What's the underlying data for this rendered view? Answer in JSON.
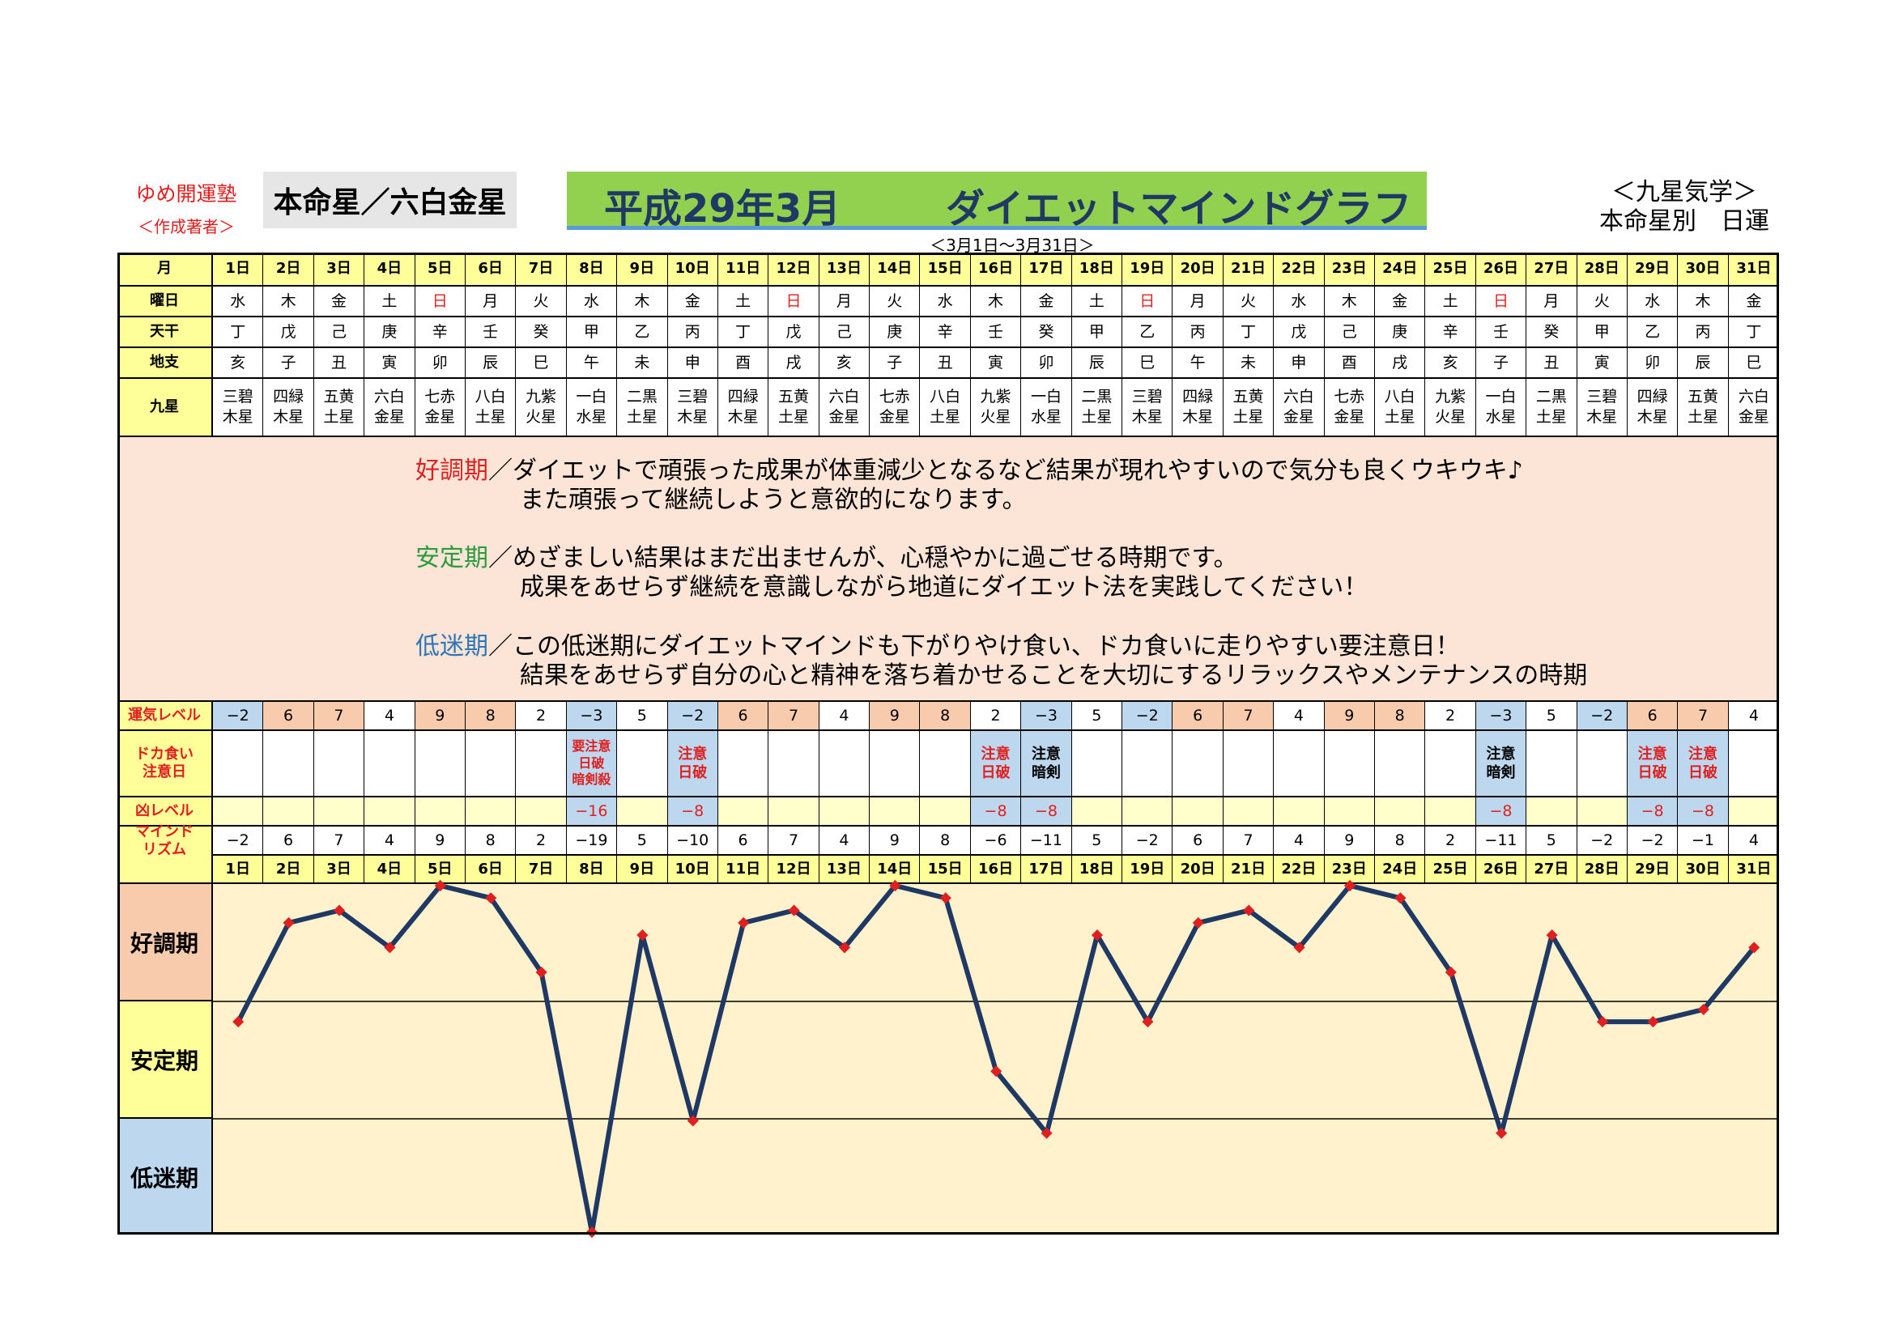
{
  "header": {
    "brand": "ゆめ開運塾",
    "author": "＜作成著者＞",
    "honmei": "本命星／六白金星",
    "title_date": "平成29年3月",
    "title_main": "ダイエットマインドグラフ",
    "period": "＜3月1日～3月31日＞",
    "kyusei_line1": "＜九星気学＞",
    "kyusei_line2": "本命星別　日運"
  },
  "labels": {
    "month": "月",
    "weekday": "曜日",
    "tenkan": "天干",
    "chishi": "地支",
    "kyusei": "九星",
    "unki": "運気レベル",
    "dokagui_1": "ドカ食い",
    "dokagui_2": "注意日",
    "kyo": "凶レベル",
    "mind_1": "マインド",
    "mind_2": "リズム"
  },
  "days": [
    "1日",
    "2日",
    "3日",
    "4日",
    "5日",
    "6日",
    "7日",
    "8日",
    "9日",
    "10日",
    "11日",
    "12日",
    "13日",
    "14日",
    "15日",
    "16日",
    "17日",
    "18日",
    "19日",
    "20日",
    "21日",
    "22日",
    "23日",
    "24日",
    "25日",
    "26日",
    "27日",
    "28日",
    "29日",
    "30日",
    "31日"
  ],
  "weekdays": [
    "水",
    "木",
    "金",
    "土",
    "日",
    "月",
    "火",
    "水",
    "木",
    "金",
    "土",
    "日",
    "月",
    "火",
    "水",
    "木",
    "金",
    "土",
    "日",
    "月",
    "火",
    "水",
    "木",
    "金",
    "土",
    "日",
    "月",
    "火",
    "水",
    "木",
    "金"
  ],
  "tenkan": [
    "丁",
    "戊",
    "己",
    "庚",
    "辛",
    "壬",
    "癸",
    "甲",
    "乙",
    "丙",
    "丁",
    "戊",
    "己",
    "庚",
    "辛",
    "壬",
    "癸",
    "甲",
    "乙",
    "丙",
    "丁",
    "戊",
    "己",
    "庚",
    "辛",
    "壬",
    "癸",
    "甲",
    "乙",
    "丙",
    "丁"
  ],
  "chishi": [
    "亥",
    "子",
    "丑",
    "寅",
    "卯",
    "辰",
    "巳",
    "午",
    "未",
    "申",
    "酉",
    "戌",
    "亥",
    "子",
    "丑",
    "寅",
    "卯",
    "辰",
    "巳",
    "午",
    "未",
    "申",
    "酉",
    "戌",
    "亥",
    "子",
    "丑",
    "寅",
    "卯",
    "辰",
    "巳"
  ],
  "kyusei_top": [
    "三碧",
    "四緑",
    "五黄",
    "六白",
    "七赤",
    "八白",
    "九紫",
    "一白",
    "二黒",
    "三碧",
    "四緑",
    "五黄",
    "六白",
    "七赤",
    "八白",
    "九紫",
    "一白",
    "二黒",
    "三碧",
    "四緑",
    "五黄",
    "六白",
    "七赤",
    "八白",
    "九紫",
    "一白",
    "二黒",
    "三碧",
    "四緑",
    "五黄",
    "六白"
  ],
  "kyusei_bottom": [
    "木星",
    "木星",
    "土星",
    "金星",
    "金星",
    "土星",
    "火星",
    "水星",
    "土星",
    "木星",
    "木星",
    "土星",
    "金星",
    "金星",
    "土星",
    "火星",
    "水星",
    "土星",
    "木星",
    "木星",
    "土星",
    "金星",
    "金星",
    "土星",
    "火星",
    "水星",
    "土星",
    "木星",
    "木星",
    "土星",
    "金星"
  ],
  "unki": [
    "−2",
    "6",
    "7",
    "4",
    "9",
    "8",
    "2",
    "−3",
    "5",
    "−2",
    "6",
    "7",
    "4",
    "9",
    "8",
    "2",
    "−3",
    "5",
    "−2",
    "6",
    "7",
    "4",
    "9",
    "8",
    "2",
    "−3",
    "5",
    "−2",
    "6",
    "7",
    "4"
  ],
  "dokagui": {
    "8": {
      "lines": [
        "要注意",
        "日破",
        "暗剣殺"
      ],
      "color": "red"
    },
    "10": {
      "lines": [
        "注意",
        "日破"
      ],
      "color": "red"
    },
    "16": {
      "lines": [
        "注意",
        "日破"
      ],
      "color": "red"
    },
    "17": {
      "lines": [
        "注意",
        "暗剣"
      ],
      "color": "black"
    },
    "26": {
      "lines": [
        "注意",
        "暗剣"
      ],
      "color": "black"
    },
    "29": {
      "lines": [
        "注意",
        "日破"
      ],
      "color": "red"
    },
    "30": {
      "lines": [
        "注意",
        "日破"
      ],
      "color": "red"
    }
  },
  "kyo": {
    "8": "−16",
    "10": "−8",
    "16": "−8",
    "17": "−8",
    "26": "−8",
    "29": "−8",
    "30": "−8"
  },
  "mind_labels": [
    "−2",
    "6",
    "7",
    "4",
    "9",
    "8",
    "2",
    "−19",
    "5",
    "−10",
    "6",
    "7",
    "4",
    "9",
    "8",
    "−6",
    "−11",
    "5",
    "−2",
    "6",
    "7",
    "4",
    "9",
    "8",
    "2",
    "−11",
    "5",
    "−2",
    "−2",
    "−1",
    "4"
  ],
  "description": {
    "good_key": "好調期",
    "good_1": "／ダイエットで頑張った成果が体重減少となるなど結果が現れやすいので気分も良くウキウキ♪",
    "good_2": "また頑張って継続しようと意欲的になります。",
    "stable_key": "安定期",
    "stable_1": "／めざましい結果はまだ出ませんが、心穏やかに過ごせる時期です。",
    "stable_2": "成果をあせらず継続を意識しながら地道にダイエット法を実践してください！",
    "low_key": "低迷期",
    "low_1": "／この低迷期にダイエットマインドも下がりやけ食い、ドカ食いに走りやすい要注意日！",
    "low_2": "結果をあせらず自分の心と精神を落ち着かせることを大切にするリラックスやメンテナンスの時期"
  },
  "bands": {
    "good": "好調期",
    "stable": "安定期",
    "low": "低迷期"
  },
  "colors": {
    "good": "#f8cbad",
    "stable": "#ffff99",
    "low": "#bdd7ee",
    "line": "#1f3864",
    "marker": "#e02020",
    "plot_bg": "#fff2cc"
  },
  "chart_data": {
    "type": "line",
    "categories": [
      "1日",
      "2日",
      "3日",
      "4日",
      "5日",
      "6日",
      "7日",
      "8日",
      "9日",
      "10日",
      "11日",
      "12日",
      "13日",
      "14日",
      "15日",
      "16日",
      "17日",
      "18日",
      "19日",
      "20日",
      "21日",
      "22日",
      "23日",
      "24日",
      "25日",
      "26日",
      "27日",
      "28日",
      "29日",
      "30日",
      "31日"
    ],
    "values": [
      -2,
      6,
      7,
      4,
      9,
      8,
      2,
      -19,
      5,
      -10,
      6,
      7,
      4,
      9,
      8,
      -6,
      -11,
      5,
      -2,
      6,
      7,
      4,
      9,
      8,
      2,
      -11,
      5,
      -2,
      -2,
      -1,
      4
    ],
    "ylim": [
      -19,
      9
    ],
    "grid": false,
    "band_labels": [
      "好調期",
      "安定期",
      "低迷期"
    ]
  }
}
